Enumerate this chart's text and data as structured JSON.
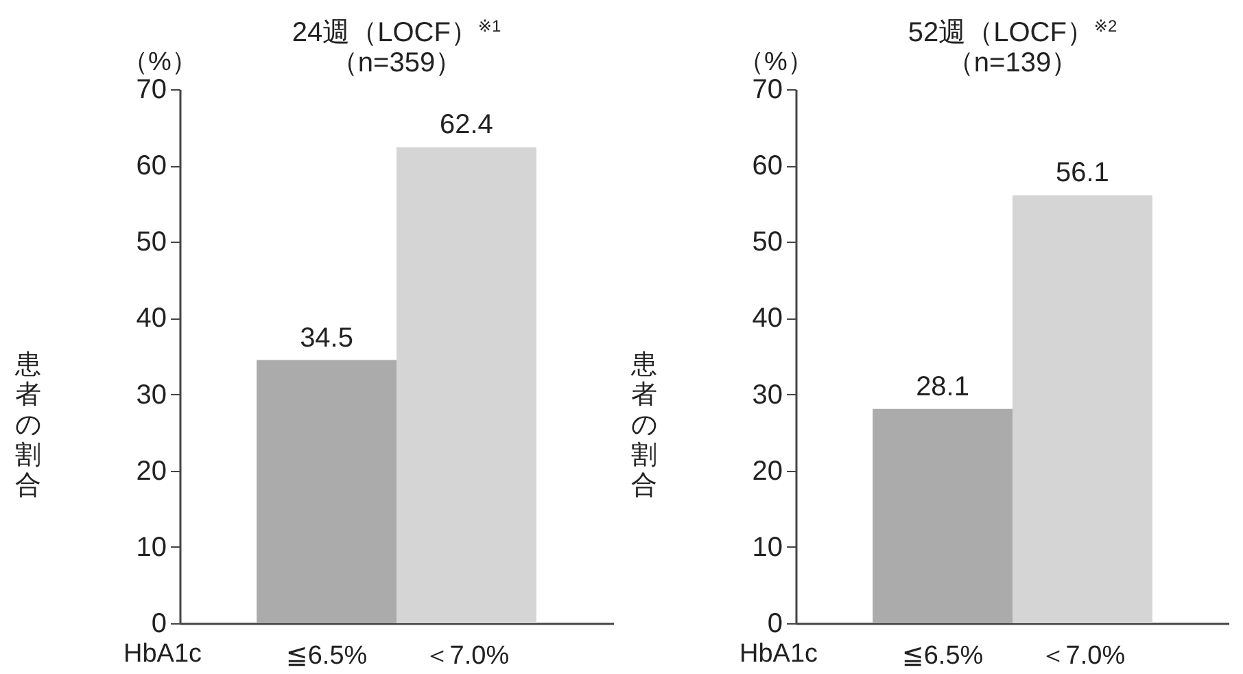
{
  "chart_data": [
    {
      "type": "bar",
      "title": "24週（LOCF）$^{※1}$",
      "subtitle": "（n=359）",
      "ylabel": "患者の割合",
      "categories": [
        "≦6.5%",
        "＜7.0%"
      ],
      "values": [
        34.5,
        62.4
      ],
      "colors": [
        "#ababab",
        "#d5d5d5"
      ],
      "data_labels": true,
      "ylim": [
        0,
        70
      ],
      "yticks": [
        0,
        10,
        20,
        30,
        40,
        50,
        60,
        70
      ],
      "annotations": [
        "（%）",
        "HbA1c"
      ]
    },
    {
      "type": "bar",
      "title": "52週（LOCF）$^{※2}$",
      "subtitle": "（n=139）",
      "ylabel": "患者の割合",
      "categories": [
        "≦6.5%",
        "＜7.0%"
      ],
      "values": [
        28.1,
        56.1
      ],
      "colors": [
        "#ababab",
        "#d5d5d5"
      ],
      "data_labels": true,
      "ylim": [
        0,
        70
      ],
      "yticks": [
        0,
        10,
        20,
        30,
        40,
        50,
        60,
        70
      ],
      "annotations": [
        "（%）",
        "HbA1c"
      ]
    }
  ]
}
